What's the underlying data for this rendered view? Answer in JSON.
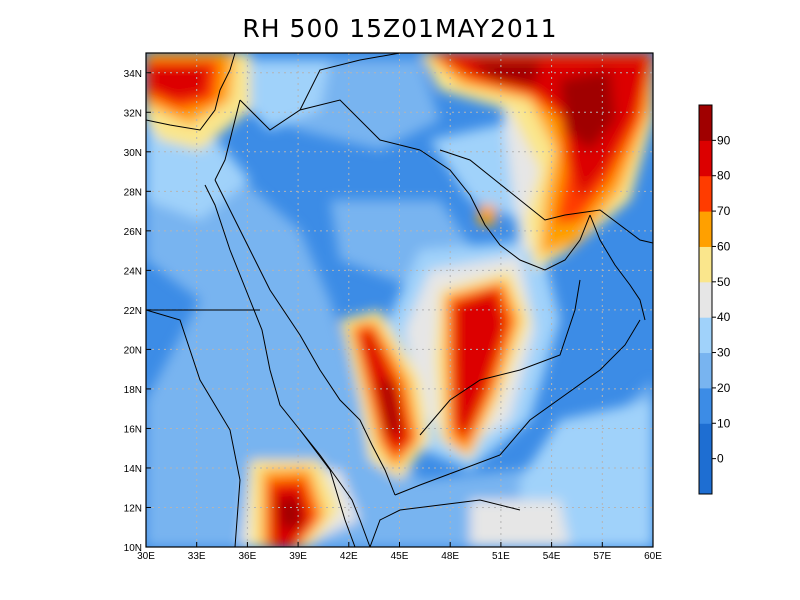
{
  "title": "RH 500  15Z01MAY2011",
  "map": {
    "lon_range": [
      30,
      60
    ],
    "lat_range": [
      10,
      35
    ],
    "lon_ticks": [
      "30E",
      "33E",
      "36E",
      "39E",
      "42E",
      "45E",
      "48E",
      "51E",
      "54E",
      "57E",
      "60E"
    ],
    "lat_ticks": [
      "10N",
      "12N",
      "14N",
      "16N",
      "18N",
      "20N",
      "22N",
      "24N",
      "26N",
      "28N",
      "30N",
      "32N",
      "34N"
    ],
    "grid": true,
    "frame_color": "#000000",
    "border_color": "#000000",
    "grid_color": "#b4b4b4"
  },
  "colorbar": {
    "placement": "right",
    "labels": [
      "0",
      "10",
      "20",
      "30",
      "40",
      "50",
      "60",
      "70",
      "80",
      "90"
    ],
    "colors": [
      "#1e6ed2",
      "#3c8ce6",
      "#78b4f0",
      "#a0d2fa",
      "#e6e6e6",
      "#fae68c",
      "#ffa000",
      "#ff3c00",
      "#dc0000",
      "#a00000"
    ]
  },
  "field_colors": {
    "c0": "#3c8ce6",
    "c1": "#78b4f0",
    "c2": "#a0d2fa",
    "c3": "#e6e6e6",
    "c4": "#fae68c",
    "c5": "#ffa000",
    "c6": "#ff3c00",
    "c7": "#dc0000",
    "c8": "#a00000",
    "base": "#3c8ce6"
  }
}
